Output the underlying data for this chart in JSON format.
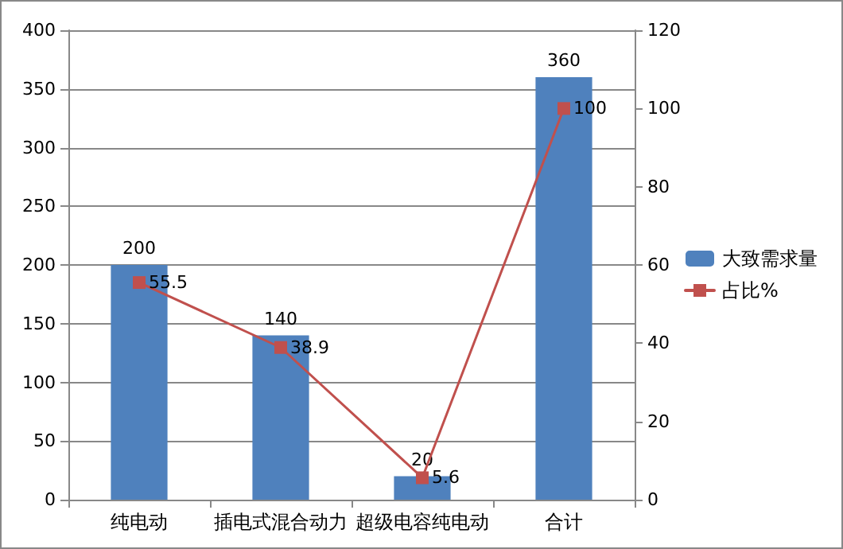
{
  "chart_data": {
    "type": "bar",
    "categories": [
      "纯电动",
      "插电式混合动力",
      "超级电容纯电动",
      "合计"
    ],
    "series": [
      {
        "name": "大致需求量",
        "color": "#4f81bd",
        "values": [
          200,
          140,
          20,
          360
        ]
      },
      {
        "name": "占比%",
        "type": "line",
        "axis": "y2",
        "color": "#c0504d",
        "values": [
          55.5,
          38.9,
          5.6,
          100
        ]
      }
    ],
    "ylim": [
      0,
      400
    ],
    "yticks": [
      0,
      50,
      100,
      150,
      200,
      250,
      300,
      350,
      400
    ],
    "y2lim": [
      0,
      120
    ],
    "y2ticks": [
      0,
      20,
      40,
      60,
      80,
      100,
      120
    ],
    "grid": "y",
    "legend": "right",
    "marker": "square",
    "line_style": "solid",
    "data_labels": true
  }
}
